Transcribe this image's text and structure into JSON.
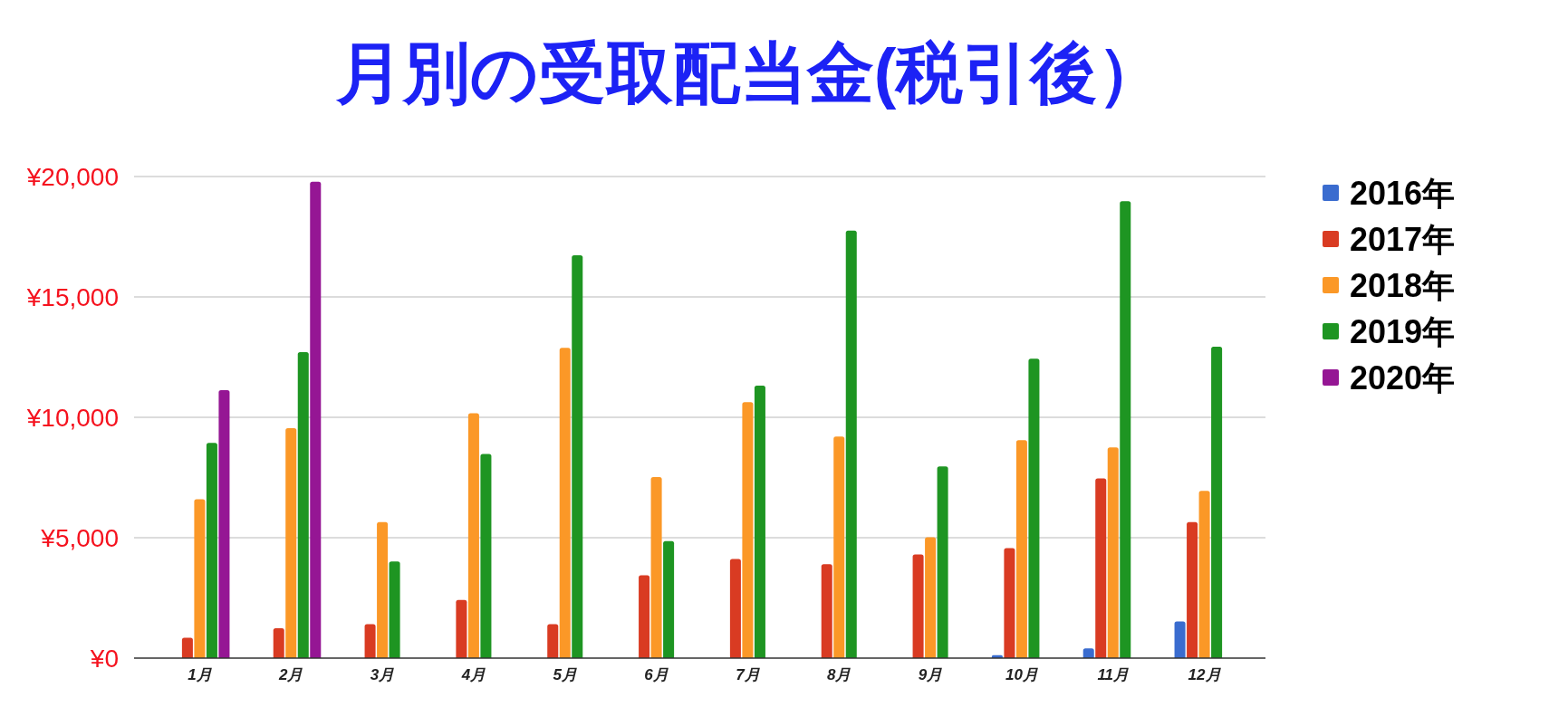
{
  "chart_data": {
    "type": "bar",
    "title": "月別の受取配当金(税引後）",
    "categories": [
      "1月",
      "2月",
      "3月",
      "4月",
      "5月",
      "6月",
      "7月",
      "8月",
      "9月",
      "10月",
      "11月",
      "12月"
    ],
    "series": [
      {
        "name": "2016年",
        "color": "#3a6ccf",
        "values": [
          null,
          null,
          null,
          null,
          null,
          null,
          null,
          null,
          null,
          120,
          400,
          1520
        ]
      },
      {
        "name": "2017年",
        "color": "#d93b22",
        "values": [
          850,
          1240,
          1410,
          2420,
          1410,
          3440,
          4120,
          3900,
          4300,
          4570,
          7460,
          5650
        ]
      },
      {
        "name": "2018年",
        "color": "#fb9827",
        "values": [
          6600,
          9550,
          5650,
          10170,
          12890,
          7520,
          10630,
          9200,
          5020,
          9050,
          8750,
          6950
        ]
      },
      {
        "name": "2019年",
        "color": "#1e9522",
        "values": [
          8940,
          12710,
          4010,
          8480,
          16730,
          4860,
          11320,
          17750,
          7960,
          12430,
          18980,
          12930
        ]
      },
      {
        "name": "2020年",
        "color": "#951694",
        "values": [
          11130,
          19780,
          null,
          null,
          null,
          null,
          null,
          null,
          null,
          null,
          null,
          null
        ]
      }
    ],
    "ylim": [
      0,
      20000
    ],
    "yticks": [
      {
        "value": 0,
        "label": "¥0"
      },
      {
        "value": 5000,
        "label": "¥5,000"
      },
      {
        "value": 10000,
        "label": "¥10,000"
      },
      {
        "value": 15000,
        "label": "¥15,000"
      },
      {
        "value": 20000,
        "label": "¥20,000"
      }
    ],
    "grid": "y",
    "legend": "right"
  }
}
